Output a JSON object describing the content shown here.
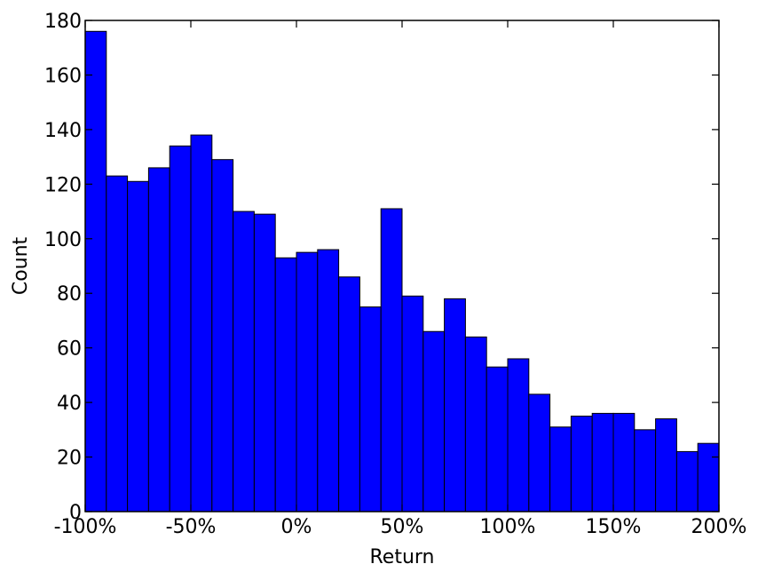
{
  "chart_data": {
    "type": "bar",
    "title": "",
    "xlabel": "Return",
    "ylabel": "Count",
    "xlim": [
      -100,
      200
    ],
    "ylim": [
      0,
      180
    ],
    "grid": false,
    "bar_color": "#0000ff",
    "edge_color": "#000000",
    "bin_width_pct": 10,
    "bin_edges_start": -100,
    "values": [
      176,
      123,
      121,
      126,
      134,
      138,
      129,
      110,
      109,
      93,
      95,
      96,
      86,
      75,
      111,
      79,
      66,
      78,
      64,
      53,
      56,
      43,
      31,
      35,
      36,
      36,
      30,
      34,
      22,
      25
    ],
    "x_ticks": [
      {
        "value": -100,
        "label": "-100%"
      },
      {
        "value": -50,
        "label": "-50%"
      },
      {
        "value": 0,
        "label": "0%"
      },
      {
        "value": 50,
        "label": "50%"
      },
      {
        "value": 100,
        "label": "100%"
      },
      {
        "value": 150,
        "label": "150%"
      },
      {
        "value": 200,
        "label": "200%"
      }
    ],
    "y_ticks": [
      {
        "value": 0,
        "label": "0"
      },
      {
        "value": 20,
        "label": "20"
      },
      {
        "value": 40,
        "label": "40"
      },
      {
        "value": 60,
        "label": "60"
      },
      {
        "value": 80,
        "label": "80"
      },
      {
        "value": 100,
        "label": "100"
      },
      {
        "value": 120,
        "label": "120"
      },
      {
        "value": 140,
        "label": "140"
      },
      {
        "value": 160,
        "label": "160"
      },
      {
        "value": 180,
        "label": "180"
      }
    ]
  }
}
